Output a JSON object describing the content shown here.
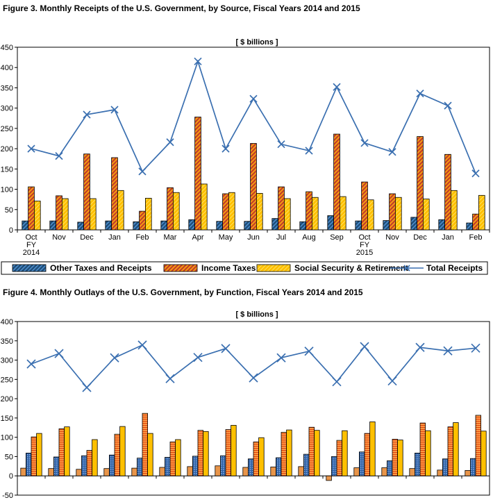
{
  "figure3": {
    "title": "Figure 3.  Monthly Receipts of the U.S. Government, by Source, Fiscal Years 2014 and 2015",
    "unit_label": "[ $ billions ]",
    "legend": [
      "Other Taxes and Receipts",
      "Income Taxes",
      "Social Security & Retirement",
      "Total Receipts"
    ]
  },
  "figure4": {
    "title": "Figure 4.  Monthly Outlays of the U.S. Government, by Function, Fiscal Years 2014 and 2015",
    "unit_label": "[ $ billions ]"
  },
  "chart_data": [
    {
      "type": "bar",
      "title": "Figure 3.  Monthly Receipts of the U.S. Government, by Source, Fiscal Years 2014 and 2015",
      "categories": [
        [
          "Oct",
          "FY",
          "2014"
        ],
        [
          "Nov"
        ],
        [
          "Dec"
        ],
        [
          "Jan"
        ],
        [
          "Feb"
        ],
        [
          "Mar"
        ],
        [
          "Apr"
        ],
        [
          "May"
        ],
        [
          "Jun"
        ],
        [
          "Jul"
        ],
        [
          "Aug"
        ],
        [
          "Sep"
        ],
        [
          "Oct",
          "FY",
          "2015"
        ],
        [
          "Nov"
        ],
        [
          "Dec"
        ],
        [
          "Jan"
        ],
        [
          "Feb"
        ]
      ],
      "ylim": [
        0,
        450
      ],
      "yticks": [
        0,
        50,
        100,
        150,
        200,
        250,
        300,
        350,
        400,
        450
      ],
      "grid": false,
      "legend_position": "bottom",
      "series": [
        {
          "name": "Other Taxes and Receipts",
          "kind": "bar",
          "color": "#1f4e79",
          "values": [
            22,
            22,
            19,
            22,
            20,
            22,
            25,
            21,
            21,
            28,
            20,
            35,
            22,
            23,
            31,
            25,
            17
          ]
        },
        {
          "name": "Income Taxes",
          "kind": "bar",
          "color": "#e46c0a",
          "values": [
            106,
            84,
            187,
            178,
            46,
            104,
            278,
            89,
            213,
            106,
            94,
            236,
            118,
            89,
            230,
            186,
            39
          ]
        },
        {
          "name": "Social Security & Retirement",
          "kind": "bar",
          "color": "#ffc000",
          "values": [
            71,
            77,
            77,
            97,
            78,
            92,
            113,
            92,
            90,
            77,
            80,
            82,
            74,
            80,
            76,
            97,
            85
          ]
        },
        {
          "name": "Total Receipts",
          "kind": "line",
          "color": "#3a6fb0",
          "values": [
            200,
            182,
            284,
            296,
            144,
            216,
            415,
            200,
            323,
            211,
            195,
            352,
            214,
            192,
            336,
            306,
            139
          ]
        }
      ]
    },
    {
      "type": "bar",
      "title": "Figure 4.  Monthly Outlays of the U.S. Government, by Function, Fiscal Years 2014 and 2015",
      "ylim": [
        -50,
        400
      ],
      "yticks": [
        -50,
        0,
        50,
        100,
        150,
        200,
        250,
        300,
        350,
        400
      ],
      "grid": false,
      "series": [
        {
          "kind": "bar",
          "color": "#e8954a",
          "values": [
            20,
            19,
            17,
            19,
            20,
            22,
            24,
            26,
            22,
            23,
            24,
            -12,
            21,
            21,
            19,
            15,
            14
          ]
        },
        {
          "kind": "bar",
          "color": "#4a7ec2",
          "values": [
            59,
            49,
            52,
            54,
            46,
            48,
            51,
            52,
            44,
            47,
            56,
            50,
            62,
            39,
            59,
            44,
            45
          ]
        },
        {
          "kind": "bar",
          "color": "#f0661e",
          "values": [
            101,
            122,
            66,
            108,
            162,
            88,
            118,
            120,
            88,
            113,
            126,
            92,
            110,
            95,
            137,
            127,
            157
          ]
        },
        {
          "kind": "bar",
          "color": "#ffc000",
          "values": [
            110,
            127,
            94,
            128,
            110,
            94,
            115,
            131,
            99,
            119,
            118,
            117,
            140,
            93,
            117,
            138,
            116
          ]
        },
        {
          "kind": "line",
          "color": "#3a6fb0",
          "values": [
            290,
            317,
            229,
            306,
            339,
            252,
            307,
            330,
            254,
            306,
            323,
            244,
            335,
            246,
            333,
            324,
            331
          ]
        }
      ]
    }
  ]
}
